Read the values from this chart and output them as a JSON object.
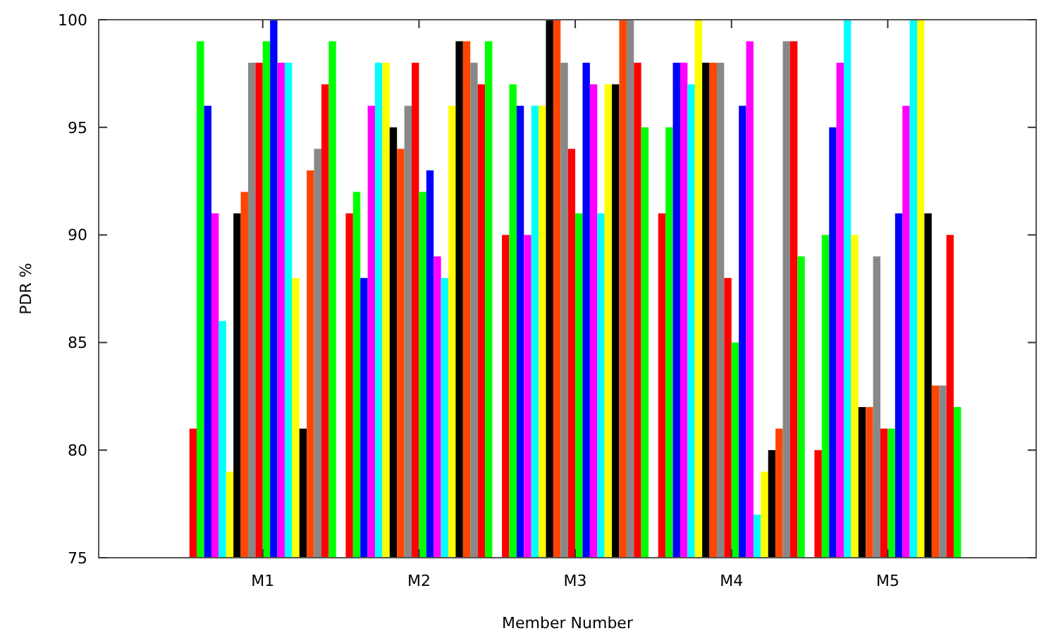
{
  "chart_data": {
    "type": "bar",
    "xlabel": "Member Number",
    "ylabel": "PDR %",
    "categories": [
      "M1",
      "M2",
      "M3",
      "M4",
      "M5"
    ],
    "ylim": [
      75,
      100
    ],
    "yticks": [
      75,
      80,
      85,
      90,
      95,
      100
    ],
    "grid": false,
    "series": [
      {
        "color": "#ff0000",
        "values": [
          81,
          91,
          90,
          91,
          80
        ]
      },
      {
        "color": "#00ff00",
        "values": [
          99,
          92,
          97,
          95,
          90
        ]
      },
      {
        "color": "#0000ff",
        "values": [
          96,
          88,
          96,
          98,
          95
        ]
      },
      {
        "color": "#ff00ff",
        "values": [
          91,
          96,
          90,
          98,
          98
        ]
      },
      {
        "color": "#00ffff",
        "values": [
          86,
          98,
          96,
          97,
          100
        ]
      },
      {
        "color": "#ffff00",
        "values": [
          79,
          98,
          96,
          100,
          90
        ]
      },
      {
        "color": "#000000",
        "values": [
          91,
          95,
          100,
          98,
          82
        ]
      },
      {
        "color": "#ff4500",
        "values": [
          92,
          94,
          100,
          98,
          82
        ]
      },
      {
        "color": "#888888",
        "values": [
          98,
          96,
          98,
          98,
          89
        ]
      },
      {
        "color": "#ff0000",
        "values": [
          98,
          98,
          94,
          88,
          81
        ]
      },
      {
        "color": "#00ff00",
        "values": [
          99,
          92,
          91,
          85,
          81
        ]
      },
      {
        "color": "#0000ff",
        "values": [
          100,
          93,
          98,
          96,
          91
        ]
      },
      {
        "color": "#ff00ff",
        "values": [
          98,
          89,
          97,
          99,
          96
        ]
      },
      {
        "color": "#00ffff",
        "values": [
          98,
          88,
          91,
          77,
          100
        ]
      },
      {
        "color": "#ffff00",
        "values": [
          88,
          96,
          97,
          79,
          100
        ]
      },
      {
        "color": "#000000",
        "values": [
          81,
          99,
          97,
          80,
          91
        ]
      },
      {
        "color": "#ff4500",
        "values": [
          93,
          99,
          100,
          81,
          83
        ]
      },
      {
        "color": "#888888",
        "values": [
          94,
          98,
          100,
          99,
          83
        ]
      },
      {
        "color": "#ff0000",
        "values": [
          97,
          97,
          98,
          99,
          90
        ]
      },
      {
        "color": "#00ff00",
        "values": [
          99,
          99,
          95,
          89,
          82
        ]
      }
    ]
  }
}
